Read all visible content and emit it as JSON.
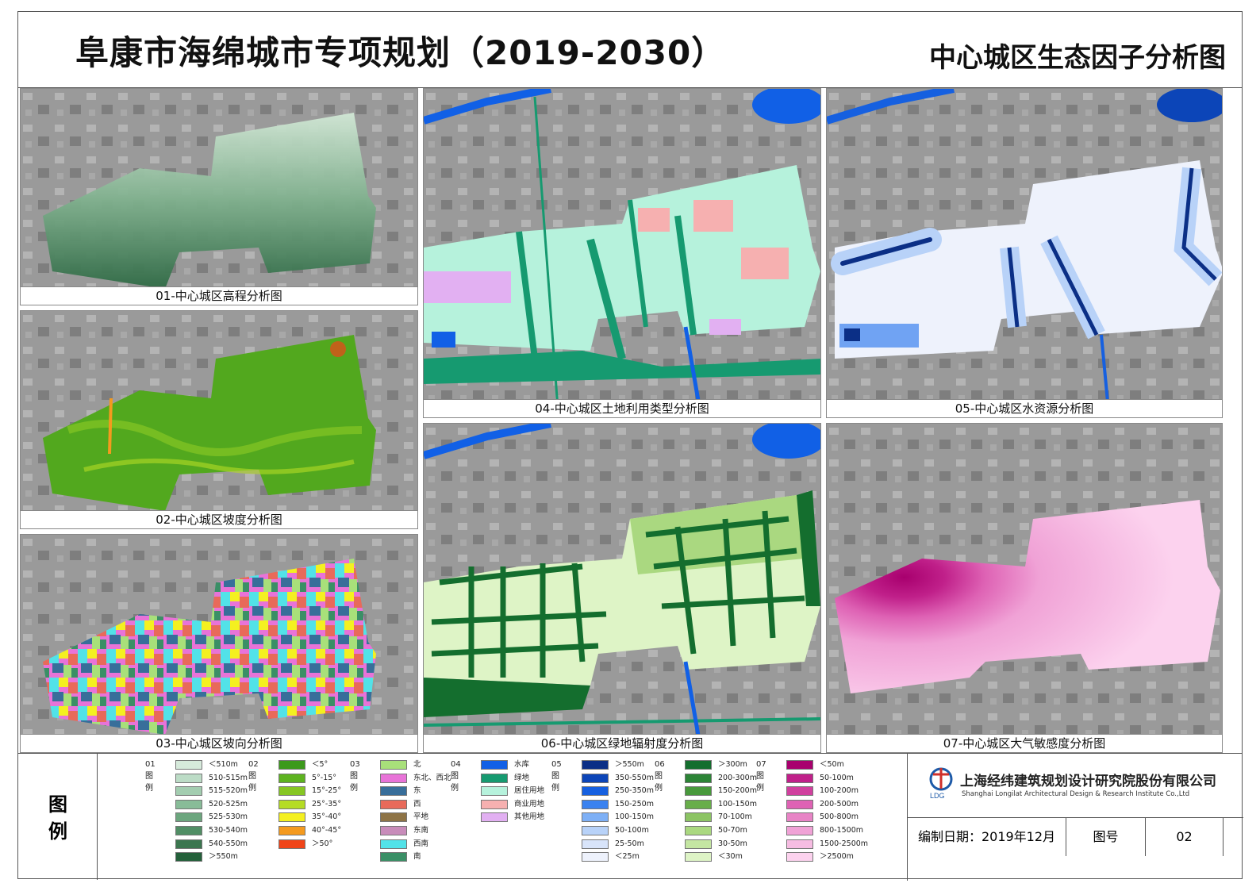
{
  "header": {
    "main_title": "阜康市海绵城市专项规划（2019-2030）",
    "sub_title": "中心城区生态因子分析图"
  },
  "panels": {
    "p01": {
      "caption": "01-中心城区高程分析图"
    },
    "p02": {
      "caption": "02-中心城区坡度分析图"
    },
    "p03": {
      "caption": "03-中心城区坡向分析图"
    },
    "p04": {
      "caption": "04-中心城区土地利用类型分析图"
    },
    "p05": {
      "caption": "05-中心城区水资源分析图"
    },
    "p06": {
      "caption": "06-中心城区绿地辐射度分析图"
    },
    "p07": {
      "caption": "07-中心城区大气敏感度分析图"
    }
  },
  "legend": {
    "label_top": "图",
    "label_bottom": "例",
    "groups": [
      {
        "title": "01图例",
        "items": [
          {
            "label": "＜510m",
            "color": "#d6eadb"
          },
          {
            "label": "510-515m",
            "color": "#bcdcc6"
          },
          {
            "label": "515-520m",
            "color": "#a3cdb0"
          },
          {
            "label": "520-525m",
            "color": "#88bc98"
          },
          {
            "label": "525-530m",
            "color": "#6ca67e"
          },
          {
            "label": "530-540m",
            "color": "#518e65"
          },
          {
            "label": "540-550m",
            "color": "#3b764f"
          },
          {
            "label": "＞550m",
            "color": "#24603a"
          }
        ]
      },
      {
        "title": "02图例",
        "items": [
          {
            "label": "＜5°",
            "color": "#3c9a1c"
          },
          {
            "label": "5°-15°",
            "color": "#5db320"
          },
          {
            "label": "15°-25°",
            "color": "#86c623"
          },
          {
            "label": "25°-35°",
            "color": "#b5dc24"
          },
          {
            "label": "35°-40°",
            "color": "#f4f020"
          },
          {
            "label": "40°-45°",
            "color": "#f49a1e"
          },
          {
            "label": "＞50°",
            "color": "#f04418"
          }
        ]
      },
      {
        "title": "03图例",
        "items": [
          {
            "label": "北",
            "color": "#a8e07a"
          },
          {
            "label": "东北、西北",
            "color": "#e873d8"
          },
          {
            "label": "东",
            "color": "#386e9a"
          },
          {
            "label": "西",
            "color": "#e86a5a"
          },
          {
            "label": "平地",
            "color": "#8e7446"
          },
          {
            "label": "东南",
            "color": "#c88cba"
          },
          {
            "label": "西南",
            "color": "#52e2e8"
          },
          {
            "label": "南",
            "color": "#3a8f66"
          }
        ]
      },
      {
        "title": "04图例",
        "items": [
          {
            "label": "水库",
            "color": "#1160e6"
          },
          {
            "label": "绿地",
            "color": "#169a70"
          },
          {
            "label": "居住用地",
            "color": "#b6f2dc"
          },
          {
            "label": "商业用地",
            "color": "#f6b0b0"
          },
          {
            "label": "其他用地",
            "color": "#e2b0f2"
          }
        ]
      },
      {
        "title": "05图例",
        "items": [
          {
            "label": "＞550m",
            "color": "#0b2f86"
          },
          {
            "label": "350-550m",
            "color": "#0c45b8"
          },
          {
            "label": "250-350m",
            "color": "#1660e0"
          },
          {
            "label": "150-250m",
            "color": "#3a82f0"
          },
          {
            "label": "100-150m",
            "color": "#7eb0f6"
          },
          {
            "label": "50-100m",
            "color": "#b8d2f8"
          },
          {
            "label": "25-50m",
            "color": "#d8e4fa"
          },
          {
            "label": "＜25m",
            "color": "#eef2fc"
          }
        ]
      },
      {
        "title": "06图例",
        "items": [
          {
            "label": "＞300m",
            "color": "#146e2e"
          },
          {
            "label": "200-300m",
            "color": "#2c8436"
          },
          {
            "label": "150-200m",
            "color": "#48993c"
          },
          {
            "label": "100-150m",
            "color": "#68ae4a"
          },
          {
            "label": "70-100m",
            "color": "#8cc464"
          },
          {
            "label": "50-70m",
            "color": "#aad880"
          },
          {
            "label": "30-50m",
            "color": "#c4e6a2"
          },
          {
            "label": "＜30m",
            "color": "#def4c6"
          }
        ]
      },
      {
        "title": "07图例",
        "items": [
          {
            "label": "＜50m",
            "color": "#a8006e"
          },
          {
            "label": "50-100m",
            "color": "#c0208a"
          },
          {
            "label": "100-200m",
            "color": "#d0409e"
          },
          {
            "label": "200-500m",
            "color": "#de62b4"
          },
          {
            "label": "500-800m",
            "color": "#e884c6"
          },
          {
            "label": "800-1500m",
            "color": "#f0a2d6"
          },
          {
            "label": "1500-2500m",
            "color": "#f6bce2"
          },
          {
            "label": "＞2500m",
            "color": "#fcd2ee"
          }
        ]
      }
    ]
  },
  "company": {
    "logo_text": "LDG",
    "name_cn": "上海经纬建筑规划设计研究院股份有限公司",
    "name_en": "Shanghai Longilat Architectural Design & Research Institute Co.,Ltd"
  },
  "info": {
    "date_label": "编制日期：2019年12月",
    "number_label": "图号",
    "number_value": "02"
  }
}
